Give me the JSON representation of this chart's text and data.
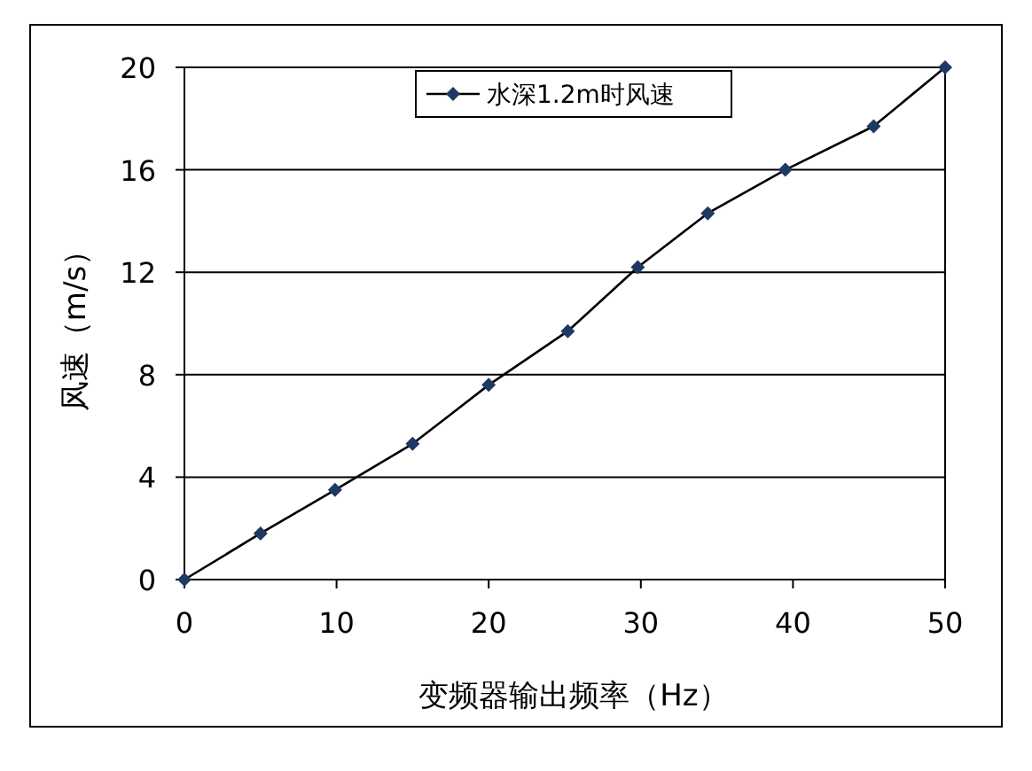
{
  "chart_data": {
    "type": "line",
    "xlabel": "变频器输出频率（Hz）",
    "ylabel": "风速（m/s）",
    "x": [
      0,
      5,
      9.9,
      15,
      20,
      25.2,
      29.8,
      34.4,
      39.5,
      45.3,
      50
    ],
    "series": [
      {
        "name": "水深1.2m时风速",
        "color": "#1f3864",
        "values": [
          0,
          1.8,
          3.5,
          5.3,
          7.6,
          9.7,
          12.2,
          14.3,
          16.0,
          17.7,
          20
        ]
      }
    ],
    "xlim": [
      0,
      50
    ],
    "ylim": [
      0,
      20
    ],
    "xticks": [
      0,
      10,
      20,
      30,
      40,
      50
    ],
    "yticks": [
      0,
      4,
      8,
      12,
      16,
      20
    ],
    "grid": "y",
    "legend": "top",
    "marker": "diamond",
    "line_style": "solid"
  }
}
